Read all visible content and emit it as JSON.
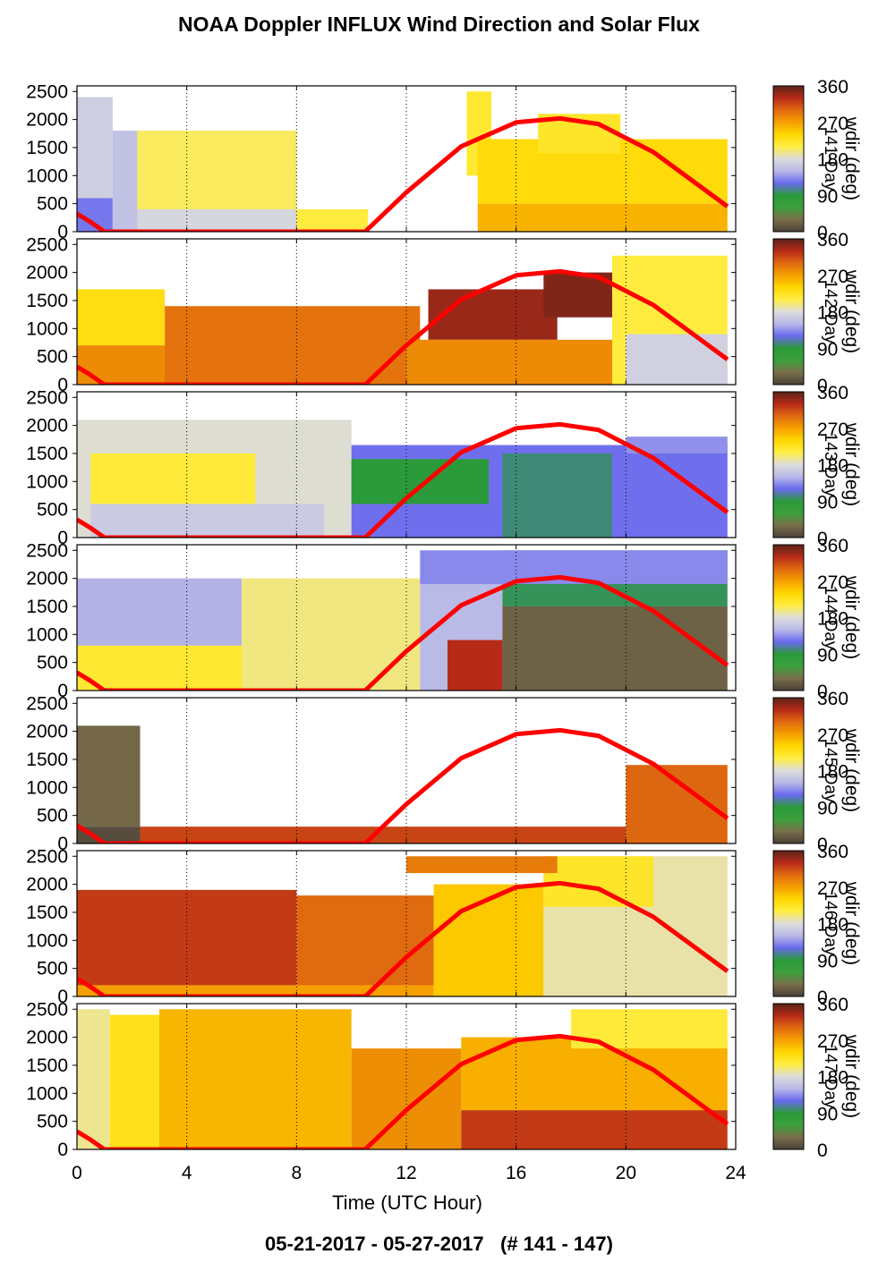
{
  "title": "NOAA Doppler INFLUX Wind Direction and Solar Flux",
  "footer": "05-21-2017 - 05-27-2017   (# 141 - 147)",
  "xlabel": "Time (UTC Hour)",
  "colorbar": {
    "label": "wdir (deg)",
    "ticks": [
      "0",
      "90",
      "180",
      "270",
      "360"
    ]
  },
  "colors": {
    "solar_curve": "#ff0000",
    "grid": "#000000"
  },
  "chart_data": {
    "type": "heatmap",
    "x": {
      "range": [
        0,
        24
      ],
      "ticks": [
        "0",
        "4",
        "8",
        "12",
        "16",
        "20",
        "24"
      ]
    },
    "y": {
      "range": [
        0,
        2600
      ],
      "ticks": [
        "0",
        "500",
        "1000",
        "1500",
        "2000",
        "2500"
      ]
    },
    "colormap": {
      "range": [
        0,
        360
      ],
      "stops": [
        [
          0,
          "#4a4038"
        ],
        [
          30,
          "#7a6e4a"
        ],
        [
          60,
          "#3ca03c"
        ],
        [
          90,
          "#2a9a3a"
        ],
        [
          120,
          "#6a6aee"
        ],
        [
          150,
          "#b8b8e8"
        ],
        [
          180,
          "#dcdcdc"
        ],
        [
          210,
          "#ffee44"
        ],
        [
          240,
          "#ffd700"
        ],
        [
          270,
          "#f5a000"
        ],
        [
          300,
          "#e06a10"
        ],
        [
          330,
          "#b82a18"
        ],
        [
          360,
          "#5a2418"
        ]
      ]
    },
    "solar_flux_curve": {
      "x": [
        0,
        0.5,
        1,
        10.5,
        12,
        14,
        16,
        17.6,
        19,
        21,
        23.7
      ],
      "y": [
        320,
        170,
        0,
        0,
        700,
        1520,
        1950,
        2020,
        1920,
        1420,
        450
      ]
    },
    "panels": [
      {
        "day": "141",
        "axis_label": "141-Day",
        "regions": [
          {
            "x": [
              0,
              1.3
            ],
            "y": [
              0,
              600
            ],
            "deg": 125
          },
          {
            "x": [
              0,
              1.3
            ],
            "y": [
              600,
              2400
            ],
            "deg": 168
          },
          {
            "x": [
              1.3,
              2.2
            ],
            "y": [
              0,
              1800
            ],
            "deg": 158
          },
          {
            "x": [
              2.2,
              8
            ],
            "y": [
              0,
              1800
            ],
            "deg": 205
          },
          {
            "x": [
              2.2,
              8
            ],
            "y": [
              0,
              400
            ],
            "deg": 175
          },
          {
            "x": [
              8,
              10.6
            ],
            "y": [
              0,
              400
            ],
            "deg": 212
          },
          {
            "x": [
              14.2,
              15.1
            ],
            "y": [
              1000,
              2500
            ],
            "deg": 218
          },
          {
            "x": [
              14.6,
              23.7
            ],
            "y": [
              0,
              500
            ],
            "deg": 260
          },
          {
            "x": [
              14.6,
              23.7
            ],
            "y": [
              500,
              1650
            ],
            "deg": 235
          },
          {
            "x": [
              16.8,
              19.8
            ],
            "y": [
              1400,
              2100
            ],
            "deg": 222
          }
        ]
      },
      {
        "day": "142",
        "axis_label": "142-Day",
        "regions": [
          {
            "x": [
              0,
              3.2
            ],
            "y": [
              700,
              1700
            ],
            "deg": 232
          },
          {
            "x": [
              0,
              5.5
            ],
            "y": [
              0,
              700
            ],
            "deg": 282
          },
          {
            "x": [
              3.2,
              12.5
            ],
            "y": [
              0,
              1400
            ],
            "deg": 295
          },
          {
            "x": [
              12.8,
              17.5
            ],
            "y": [
              800,
              1700
            ],
            "deg": 340
          },
          {
            "x": [
              17,
              20
            ],
            "y": [
              1200,
              2000
            ],
            "deg": 348
          },
          {
            "x": [
              12,
              19.5
            ],
            "y": [
              0,
              800
            ],
            "deg": 282
          },
          {
            "x": [
              19.5,
              23.7
            ],
            "y": [
              0,
              2300
            ],
            "deg": 212
          },
          {
            "x": [
              20,
              23.7
            ],
            "y": [
              0,
              900
            ],
            "deg": 170
          }
        ]
      },
      {
        "day": "143",
        "axis_label": "143-Day",
        "regions": [
          {
            "x": [
              0,
              10
            ],
            "y": [
              0,
              2100
            ],
            "deg": 182
          },
          {
            "x": [
              0.5,
              6.5
            ],
            "y": [
              600,
              1500
            ],
            "deg": 215
          },
          {
            "x": [
              0.5,
              9
            ],
            "y": [
              0,
              600
            ],
            "deg": 165
          },
          {
            "x": [
              10,
              23.7
            ],
            "y": [
              0,
              1650
            ],
            "deg": 122
          },
          {
            "x": [
              10,
              15
            ],
            "y": [
              600,
              1400
            ],
            "deg": 88
          },
          {
            "x": [
              15.5,
              19.5
            ],
            "y": [
              0,
              1500
            ],
            "deg": 100
          },
          {
            "x": [
              20,
              23.7
            ],
            "y": [
              1500,
              1800
            ],
            "deg": 135
          }
        ]
      },
      {
        "day": "144",
        "axis_label": "144-Day",
        "regions": [
          {
            "x": [
              0,
              6
            ],
            "y": [
              800,
              2000
            ],
            "deg": 148
          },
          {
            "x": [
              0,
              6
            ],
            "y": [
              0,
              800
            ],
            "deg": 218
          },
          {
            "x": [
              6,
              12.5
            ],
            "y": [
              0,
              2000
            ],
            "deg": 198
          },
          {
            "x": [
              12.5,
              15.5
            ],
            "y": [
              0,
              2000
            ],
            "deg": 152
          },
          {
            "x": [
              13.5,
              15.5
            ],
            "y": [
              0,
              900
            ],
            "deg": 330
          },
          {
            "x": [
              15.5,
              23.7
            ],
            "y": [
              0,
              1500
            ],
            "deg": 22
          },
          {
            "x": [
              15.5,
              23.7
            ],
            "y": [
              1500,
              2500
            ],
            "deg": 95
          },
          {
            "x": [
              12.5,
              23.7
            ],
            "y": [
              1900,
              2500
            ],
            "deg": 132
          }
        ]
      },
      {
        "day": "145",
        "axis_label": "145-Day",
        "regions": [
          {
            "x": [
              0,
              2.3
            ],
            "y": [
              300,
              2100
            ],
            "deg": 26
          },
          {
            "x": [
              0,
              2.3
            ],
            "y": [
              0,
              300
            ],
            "deg": 8
          },
          {
            "x": [
              2.3,
              20
            ],
            "y": [
              0,
              300
            ],
            "deg": 318
          },
          {
            "x": [
              20,
              23.7
            ],
            "y": [
              0,
              1400
            ],
            "deg": 302
          }
        ]
      },
      {
        "day": "146",
        "axis_label": "146-Day",
        "regions": [
          {
            "x": [
              0,
              8
            ],
            "y": [
              200,
              1900
            ],
            "deg": 322
          },
          {
            "x": [
              8,
              13
            ],
            "y": [
              200,
              1800
            ],
            "deg": 300
          },
          {
            "x": [
              0,
              13
            ],
            "y": [
              0,
              200
            ],
            "deg": 270
          },
          {
            "x": [
              13,
              17
            ],
            "y": [
              0,
              2000
            ],
            "deg": 248
          },
          {
            "x": [
              17,
              23.7
            ],
            "y": [
              0,
              2500
            ],
            "deg": 190
          },
          {
            "x": [
              17,
              21
            ],
            "y": [
              1600,
              2500
            ],
            "deg": 222
          },
          {
            "x": [
              12,
              17.5
            ],
            "y": [
              2200,
              2500
            ],
            "deg": 290
          }
        ]
      },
      {
        "day": "147",
        "axis_label": "147-Day",
        "regions": [
          {
            "x": [
              0,
              1.2
            ],
            "y": [
              0,
              2500
            ],
            "deg": 195
          },
          {
            "x": [
              1.2,
              3
            ],
            "y": [
              0,
              2400
            ],
            "deg": 228
          },
          {
            "x": [
              3,
              10
            ],
            "y": [
              0,
              2500
            ],
            "deg": 258
          },
          {
            "x": [
              10,
              14
            ],
            "y": [
              0,
              1800
            ],
            "deg": 280
          },
          {
            "x": [
              14,
              23.7
            ],
            "y": [
              0,
              700
            ],
            "deg": 322
          },
          {
            "x": [
              14,
              23.7
            ],
            "y": [
              700,
              2000
            ],
            "deg": 262
          },
          {
            "x": [
              18,
              23.7
            ],
            "y": [
              1800,
              2500
            ],
            "deg": 215
          }
        ]
      }
    ]
  }
}
